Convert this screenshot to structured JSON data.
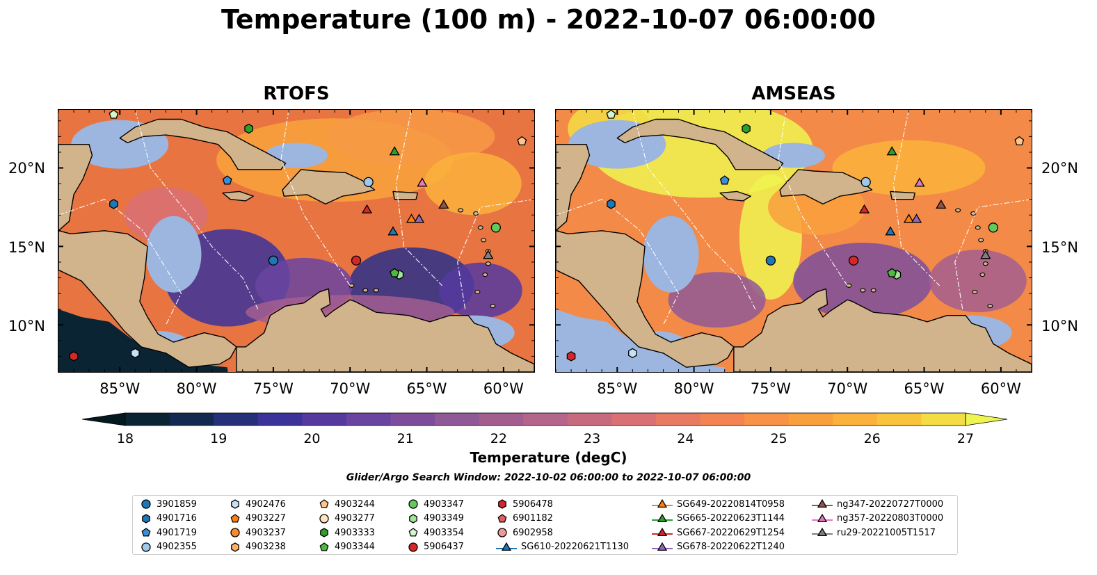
{
  "title": "Temperature (100 m) - 2022-10-07 06:00:00",
  "panels": [
    {
      "title": "RTOFS"
    },
    {
      "title": "AMSEAS"
    }
  ],
  "lon_ticks": [
    "85°W",
    "80°W",
    "75°W",
    "70°W",
    "65°W",
    "60°W"
  ],
  "lat_ticks": [
    "20°N",
    "15°N",
    "10°N"
  ],
  "colorbar": {
    "label": "Temperature (degC)",
    "ticks": [
      "18",
      "19",
      "20",
      "21",
      "22",
      "23",
      "24",
      "25",
      "26",
      "27"
    ],
    "colors": [
      "#0b2433",
      "#13294f",
      "#26307a",
      "#3b339a",
      "#55399f",
      "#6a44a0",
      "#7d4d9c",
      "#8f5896",
      "#a35e90",
      "#b5648a",
      "#c76a7f",
      "#d87074",
      "#e87a63",
      "#f38452",
      "#f79246",
      "#f9a03e",
      "#fab23c",
      "#f8c43c",
      "#f3dc44"
    ],
    "extend_low": "#041820",
    "extend_high": "#eef550"
  },
  "search_window": "Glider/Argo Search Window: 2022-10-02 06:00:00 to 2022-10-07 06:00:00",
  "legend": {
    "columns": [
      [
        {
          "label": "3901859",
          "marker": "circle",
          "color": "#1f77b4"
        },
        {
          "label": "4901716",
          "marker": "hexagon",
          "color": "#1f77b4"
        },
        {
          "label": "4901719",
          "marker": "pentagon",
          "color": "#3a8fd6"
        },
        {
          "label": "4902355",
          "marker": "circle",
          "color": "#9ec9ea"
        }
      ],
      [
        {
          "label": "4902476",
          "marker": "hexagon",
          "color": "#c6e0f5"
        },
        {
          "label": "4903227",
          "marker": "pentagon",
          "color": "#ff7f0e"
        },
        {
          "label": "4903237",
          "marker": "circle",
          "color": "#ff8a2a"
        },
        {
          "label": "4903238",
          "marker": "hexagon",
          "color": "#ffb066"
        }
      ],
      [
        {
          "label": "4903244",
          "marker": "pentagon",
          "color": "#ffc48a"
        },
        {
          "label": "4903277",
          "marker": "circle",
          "color": "#ffe2c4"
        },
        {
          "label": "4903333",
          "marker": "hexagon",
          "color": "#2ca02c"
        },
        {
          "label": "4903344",
          "marker": "pentagon",
          "color": "#4cbb3c"
        }
      ],
      [
        {
          "label": "4903347",
          "marker": "circle",
          "color": "#66c85a"
        },
        {
          "label": "4903349",
          "marker": "hexagon",
          "color": "#a3e39a"
        },
        {
          "label": "4903354",
          "marker": "pentagon",
          "color": "#d4f5cf"
        },
        {
          "label": "5906437",
          "marker": "circle",
          "color": "#d62728"
        }
      ],
      [
        {
          "label": "5906478",
          "marker": "hexagon",
          "color": "#d62728"
        },
        {
          "label": "6901182",
          "marker": "pentagon",
          "color": "#e45c60"
        },
        {
          "label": "6902958",
          "marker": "circle",
          "color": "#f09a98"
        },
        {
          "label": "SG610-20220621T1130",
          "marker": "triangle-line",
          "color": "#1f77b4"
        }
      ],
      [
        {
          "label": "SG649-20220814T0958",
          "marker": "triangle-line",
          "color": "#ff7f0e"
        },
        {
          "label": "SG665-20220623T1144",
          "marker": "triangle-line",
          "color": "#2ca02c"
        },
        {
          "label": "SG667-20220629T1254",
          "marker": "triangle-line",
          "color": "#d62728"
        },
        {
          "label": "SG678-20220622T1240",
          "marker": "triangle-line",
          "color": "#9467bd"
        }
      ],
      [
        {
          "label": "ng347-20220727T0000",
          "marker": "triangle-line",
          "color": "#8c564b"
        },
        {
          "label": "ng357-20220803T0000",
          "marker": "triangle-line",
          "color": "#e377c2"
        },
        {
          "label": "ru29-20221005T1517",
          "marker": "triangle-line",
          "color": "#7f7f7f"
        }
      ]
    ]
  },
  "map_extent": {
    "lon_min": -89,
    "lon_max": -58,
    "lat_min": 7,
    "lat_max": 23.7
  },
  "markers": [
    {
      "id": "3901859",
      "lon": -75.0,
      "lat": 14.1
    },
    {
      "id": "4901716",
      "lon": -85.4,
      "lat": 17.7
    },
    {
      "id": "4901719",
      "lon": -78.0,
      "lat": 19.2
    },
    {
      "id": "4902355",
      "lon": -68.8,
      "lat": 19.1
    },
    {
      "id": "4902476",
      "lon": -84.0,
      "lat": 8.2
    },
    {
      "id": "4903244",
      "lon": -58.8,
      "lat": 21.7
    },
    {
      "id": "4903333",
      "lon": -76.6,
      "lat": 22.5
    },
    {
      "id": "4903347",
      "lon": -60.5,
      "lat": 16.2
    },
    {
      "id": "4903349",
      "lon": -66.8,
      "lat": 13.2
    },
    {
      "id": "4903344",
      "lon": -67.1,
      "lat": 13.3
    },
    {
      "id": "4903354",
      "lon": -85.4,
      "lat": 23.4
    },
    {
      "id": "5906437",
      "lon": -69.6,
      "lat": 14.1
    },
    {
      "id": "5906478",
      "lon": -88.0,
      "lat": 8.0
    },
    {
      "id": "SG610-20220621T1130",
      "lon": -67.2,
      "lat": 15.9
    },
    {
      "id": "SG649-20220814T0958",
      "lon": -66.0,
      "lat": 16.7
    },
    {
      "id": "SG665-20220623T1144",
      "lon": -67.1,
      "lat": 21.0
    },
    {
      "id": "SG667-20220629T1254",
      "lon": -68.9,
      "lat": 17.3
    },
    {
      "id": "SG678-20220622T1240",
      "lon": -65.5,
      "lat": 16.7
    },
    {
      "id": "ng347-20220727T0000",
      "lon": -63.9,
      "lat": 17.6
    },
    {
      "id": "ng357-20220803T0000",
      "lon": -65.3,
      "lat": 19.0
    },
    {
      "id": "ru29-20221005T1517",
      "lon": -61.0,
      "lat": 14.4
    }
  ]
}
